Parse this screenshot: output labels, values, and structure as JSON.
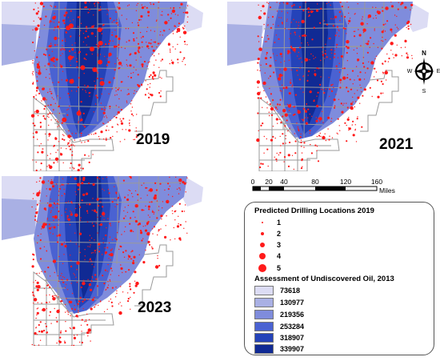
{
  "maps": [
    {
      "id": "map-2019",
      "year": "2019",
      "dot_density": 1.0
    },
    {
      "id": "map-2021",
      "year": "2021",
      "dot_density": 0.85
    },
    {
      "id": "map-2023",
      "year": "2023",
      "dot_density": 0.9
    }
  ],
  "compass": {
    "n": "N",
    "s": "S",
    "e": "E",
    "w": "W"
  },
  "scale": {
    "ticks": [
      "0",
      "20",
      "40",
      "80",
      "120",
      "160"
    ],
    "unit": "Miles"
  },
  "legend": {
    "drilling_title": "Predicted Drilling Locations 2019",
    "drilling_classes": [
      "1",
      "2",
      "3",
      "4",
      "5"
    ],
    "oil_title": "Assessment of Undiscovered Oil, 2013",
    "oil_classes": [
      {
        "label": "73618",
        "color": "#dcdcf4"
      },
      {
        "label": "130977",
        "color": "#a9b0e4"
      },
      {
        "label": "219356",
        "color": "#7f8cdc"
      },
      {
        "label": "253284",
        "color": "#4a62d2"
      },
      {
        "label": "318907",
        "color": "#2443b9"
      },
      {
        "label": "339907",
        "color": "#102a94"
      }
    ]
  },
  "colors": {
    "dots": "#ff1a1a",
    "county_lines": "#9a9a9a"
  }
}
